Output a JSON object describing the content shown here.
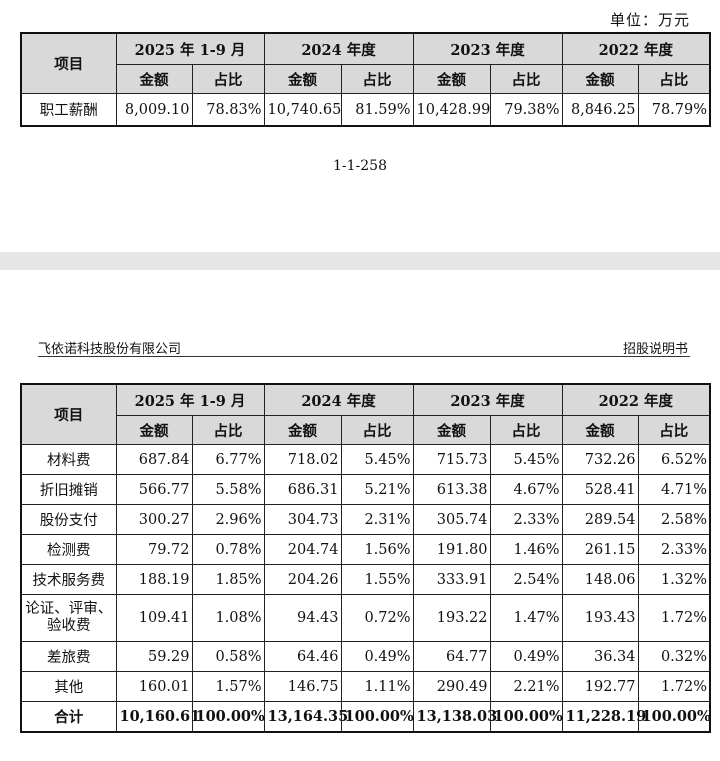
{
  "page1": {
    "unit_label": "单位：万元",
    "page_number": "1-1-258",
    "table": {
      "item_header": "项目",
      "periods": [
        "2025 年 1-9 月",
        "2024 年度",
        "2023 年度",
        "2022 年度"
      ],
      "amount_header": "金额",
      "ratio_header": "占比",
      "rows": [
        {
          "label": "职工薪酬",
          "cells": [
            "8,009.10",
            "78.83%",
            "10,740.65",
            "81.59%",
            "10,428.99",
            "79.38%",
            "8,846.25",
            "78.79%"
          ]
        }
      ]
    }
  },
  "page2": {
    "company": "飞依诺科技股份有限公司",
    "doc_type": "招股说明书",
    "table": {
      "item_header": "项目",
      "periods": [
        "2025 年 1-9 月",
        "2024 年度",
        "2023 年度",
        "2022 年度"
      ],
      "amount_header": "金额",
      "ratio_header": "占比",
      "rows": [
        {
          "label": "材料费",
          "cells": [
            "687.84",
            "6.77%",
            "718.02",
            "5.45%",
            "715.73",
            "5.45%",
            "732.26",
            "6.52%"
          ]
        },
        {
          "label": "折旧摊销",
          "cells": [
            "566.77",
            "5.58%",
            "686.31",
            "5.21%",
            "613.38",
            "4.67%",
            "528.41",
            "4.71%"
          ]
        },
        {
          "label": "股份支付",
          "cells": [
            "300.27",
            "2.96%",
            "304.73",
            "2.31%",
            "305.74",
            "2.33%",
            "289.54",
            "2.58%"
          ]
        },
        {
          "label": "检测费",
          "cells": [
            "79.72",
            "0.78%",
            "204.74",
            "1.56%",
            "191.80",
            "1.46%",
            "261.15",
            "2.33%"
          ]
        },
        {
          "label": "技术服务费",
          "cells": [
            "188.19",
            "1.85%",
            "204.26",
            "1.55%",
            "333.91",
            "2.54%",
            "148.06",
            "1.32%"
          ]
        },
        {
          "label": "论证、评审、验收费",
          "cells": [
            "109.41",
            "1.08%",
            "94.43",
            "0.72%",
            "193.22",
            "1.47%",
            "193.43",
            "1.72%"
          ]
        },
        {
          "label": "差旅费",
          "cells": [
            "59.29",
            "0.58%",
            "64.46",
            "0.49%",
            "64.77",
            "0.49%",
            "36.34",
            "0.32%"
          ]
        },
        {
          "label": "其他",
          "cells": [
            "160.01",
            "1.57%",
            "146.75",
            "1.11%",
            "290.49",
            "2.21%",
            "192.77",
            "1.72%"
          ]
        }
      ],
      "total": {
        "label": "合计",
        "cells": [
          "10,160.61",
          "100.00%",
          "13,164.35",
          "100.00%",
          "13,138.03",
          "100.00%",
          "11,228.19",
          "100.00%"
        ]
      }
    }
  }
}
